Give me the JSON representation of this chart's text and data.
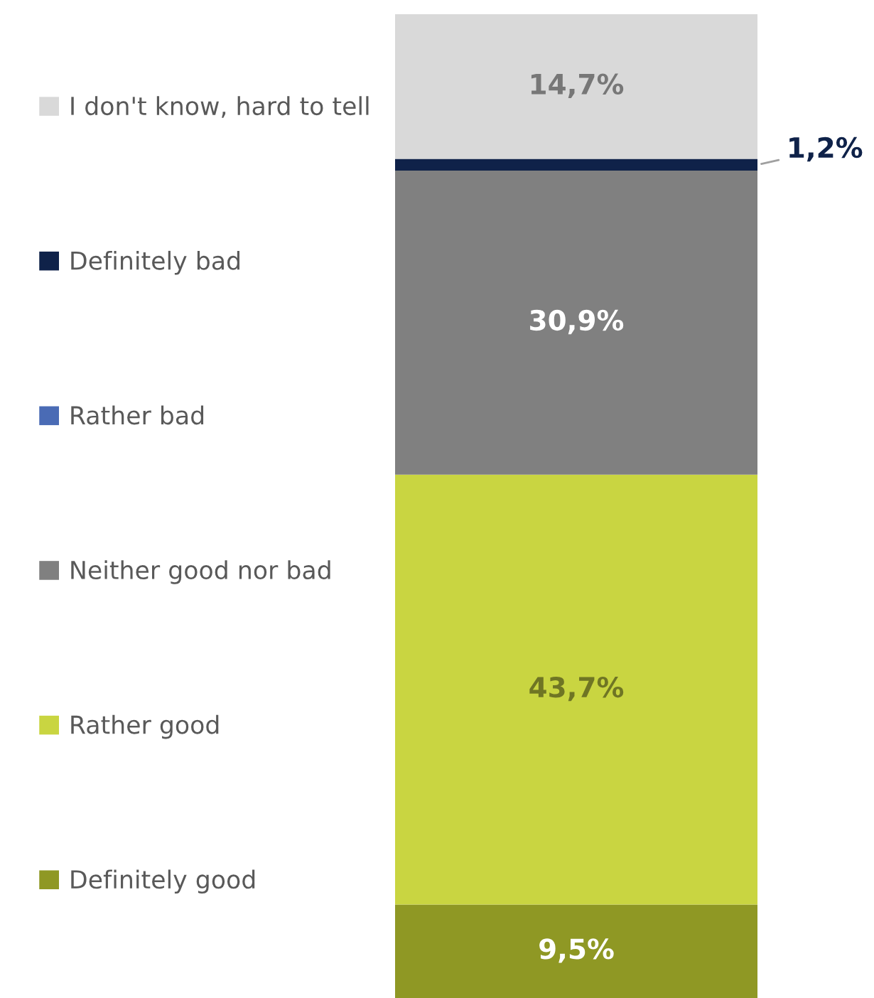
{
  "chart_data": {
    "type": "bar",
    "stacked": true,
    "categories": [
      null
    ],
    "legend": "left",
    "series": [
      {
        "name": "Definitely good",
        "color": "#8f9824",
        "values": [
          9.5
        ],
        "value_labels": [
          "9,5%"
        ]
      },
      {
        "name": "Rather good",
        "color": "#c9d541",
        "values": [
          43.7
        ],
        "value_labels": [
          "43,7%"
        ]
      },
      {
        "name": "Neither good nor bad",
        "color": "#808080",
        "values": [
          30.9
        ],
        "value_labels": [
          "30,9%"
        ]
      },
      {
        "name": "Rather bad",
        "color": "#4a6bb5",
        "values": [
          0
        ],
        "value_labels": [
          null
        ]
      },
      {
        "name": "Definitely bad",
        "color": "#0f2249",
        "values": [
          1.2
        ],
        "value_labels": [
          "1,2%"
        ]
      },
      {
        "name": "I don't know, hard to tell",
        "color": "#d9d9d9",
        "values": [
          14.7
        ],
        "value_labels": [
          "14,7%"
        ]
      }
    ]
  }
}
